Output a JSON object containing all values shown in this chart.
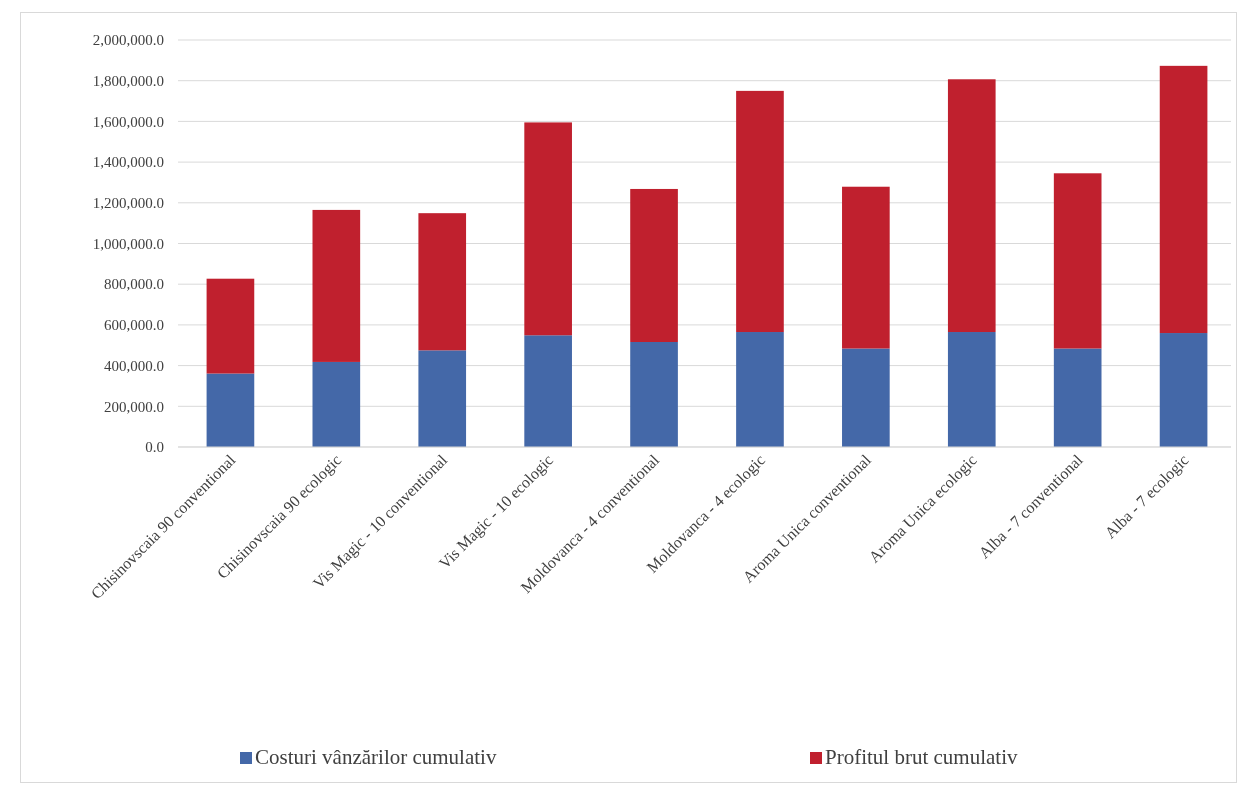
{
  "chart_data": {
    "type": "bar",
    "stacked": true,
    "categories": [
      "Chisinovscaia 90 conventional",
      "Chisinovscaia 90 ecologic",
      "Vis Magic - 10 conventional",
      "Vis Magic - 10 ecologic",
      "Moldovanca - 4 conventional",
      "Moldovanca - 4 ecologic",
      "Aroma Unica conventional",
      "Aroma Unica ecologic",
      "Alba - 7 conventional",
      "Alba - 7 ecologic"
    ],
    "series": [
      {
        "name": "Costuri vânzărilor cumulativ",
        "color": "#4468a8",
        "values": [
          361000,
          418000,
          475000,
          549000,
          516000,
          565000,
          484000,
          565000,
          484000,
          560000
        ]
      },
      {
        "name": "Profitul brut cumulativ",
        "color": "#c0202e",
        "values": [
          466000,
          747000,
          674000,
          1046000,
          752000,
          1185000,
          795000,
          1242000,
          861000,
          1313000
        ]
      }
    ],
    "ylim": [
      0,
      2000000
    ],
    "yticks": [
      {
        "value": 0,
        "label": "0.0"
      },
      {
        "value": 200000,
        "label": "200,000.0"
      },
      {
        "value": 400000,
        "label": "400,000.0"
      },
      {
        "value": 600000,
        "label": "600,000.0"
      },
      {
        "value": 800000,
        "label": "800,000.0"
      },
      {
        "value": 1000000,
        "label": "1,000,000.0"
      },
      {
        "value": 1200000,
        "label": "1,200,000.0"
      },
      {
        "value": 1400000,
        "label": "1,400,000.0"
      },
      {
        "value": 1600000,
        "label": "1,600,000.0"
      },
      {
        "value": 1800000,
        "label": "1,800,000.0"
      },
      {
        "value": 2000000,
        "label": "2,000,000.0"
      }
    ],
    "grid": "y",
    "legend": "bottom"
  }
}
